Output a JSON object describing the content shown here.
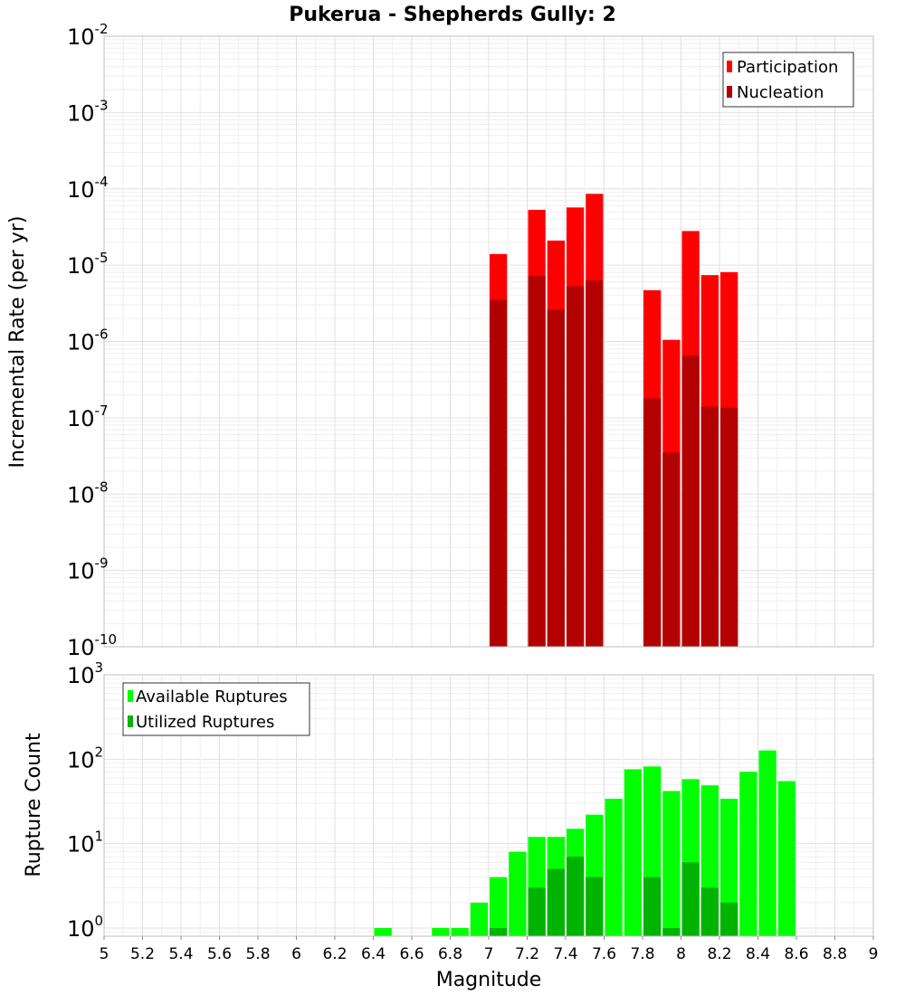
{
  "chart_data": {
    "title": "Pukerua - Shepherds Gully: 2",
    "xlabel": "Magnitude",
    "xlim": [
      5,
      9
    ],
    "x_ticks": [
      "5",
      "5.2",
      "5.4",
      "5.6",
      "5.8",
      "6",
      "6.2",
      "6.4",
      "6.6",
      "6.8",
      "7",
      "7.2",
      "7.4",
      "7.6",
      "7.8",
      "8",
      "8.2",
      "8.4",
      "8.6",
      "8.8",
      "9"
    ],
    "bin_width": 0.1,
    "grid": true,
    "panels": [
      {
        "type": "bar",
        "ylabel": "Incremental Rate (per yr)",
        "yscale": "log",
        "ylim_exponents": [
          -10,
          -2
        ],
        "y_tick_exponents": [
          "-10",
          "-9",
          "-8",
          "-7",
          "-6",
          "-5",
          "-4",
          "-3",
          "-2"
        ],
        "legend_position": "top-right",
        "series": [
          {
            "name": "Participation",
            "color": "#ff0000",
            "x": [
              7.05,
              7.25,
              7.35,
              7.45,
              7.55,
              7.85,
              7.95,
              8.05,
              8.15,
              8.25
            ],
            "values": [
              1.4e-05,
              5.3e-05,
              2.1e-05,
              5.7e-05,
              8.6e-05,
              4.7e-06,
              1.05e-06,
              2.8e-05,
              7.4e-06,
              8.1e-06
            ]
          },
          {
            "name": "Nucleation",
            "color": "#b30000",
            "x": [
              7.05,
              7.25,
              7.35,
              7.45,
              7.55,
              7.85,
              7.95,
              8.05,
              8.15,
              8.25
            ],
            "values": [
              3.5e-06,
              7.2e-06,
              2.6e-06,
              5.3e-06,
              6.3e-06,
              1.8e-07,
              3.5e-08,
              6.5e-07,
              1.4e-07,
              1.35e-07
            ]
          }
        ]
      },
      {
        "type": "bar",
        "ylabel": "Rupture Count",
        "yscale": "log",
        "ylim": [
          0.8,
          1000
        ],
        "y_tick_exponents": [
          "0",
          "1",
          "2",
          "3"
        ],
        "legend_position": "top-left",
        "series": [
          {
            "name": "Available Ruptures",
            "color": "#00ff00",
            "x": [
              6.45,
              6.75,
              6.85,
              6.95,
              7.05,
              7.15,
              7.25,
              7.35,
              7.45,
              7.55,
              7.65,
              7.75,
              7.85,
              7.95,
              8.05,
              8.15,
              8.25,
              8.35,
              8.45,
              8.55
            ],
            "values": [
              1,
              1,
              1,
              2,
              4,
              8,
              12,
              12,
              15,
              22,
              34,
              76,
              82,
              42,
              58,
              49,
              34,
              71,
              127,
              55
            ]
          },
          {
            "name": "Utilized Ruptures",
            "color": "#00b300",
            "x": [
              7.05,
              7.25,
              7.35,
              7.45,
              7.55,
              7.85,
              7.95,
              8.05,
              8.15,
              8.25
            ],
            "values": [
              1,
              3,
              5,
              7,
              4,
              4,
              1,
              6,
              3,
              2
            ]
          }
        ]
      }
    ]
  }
}
